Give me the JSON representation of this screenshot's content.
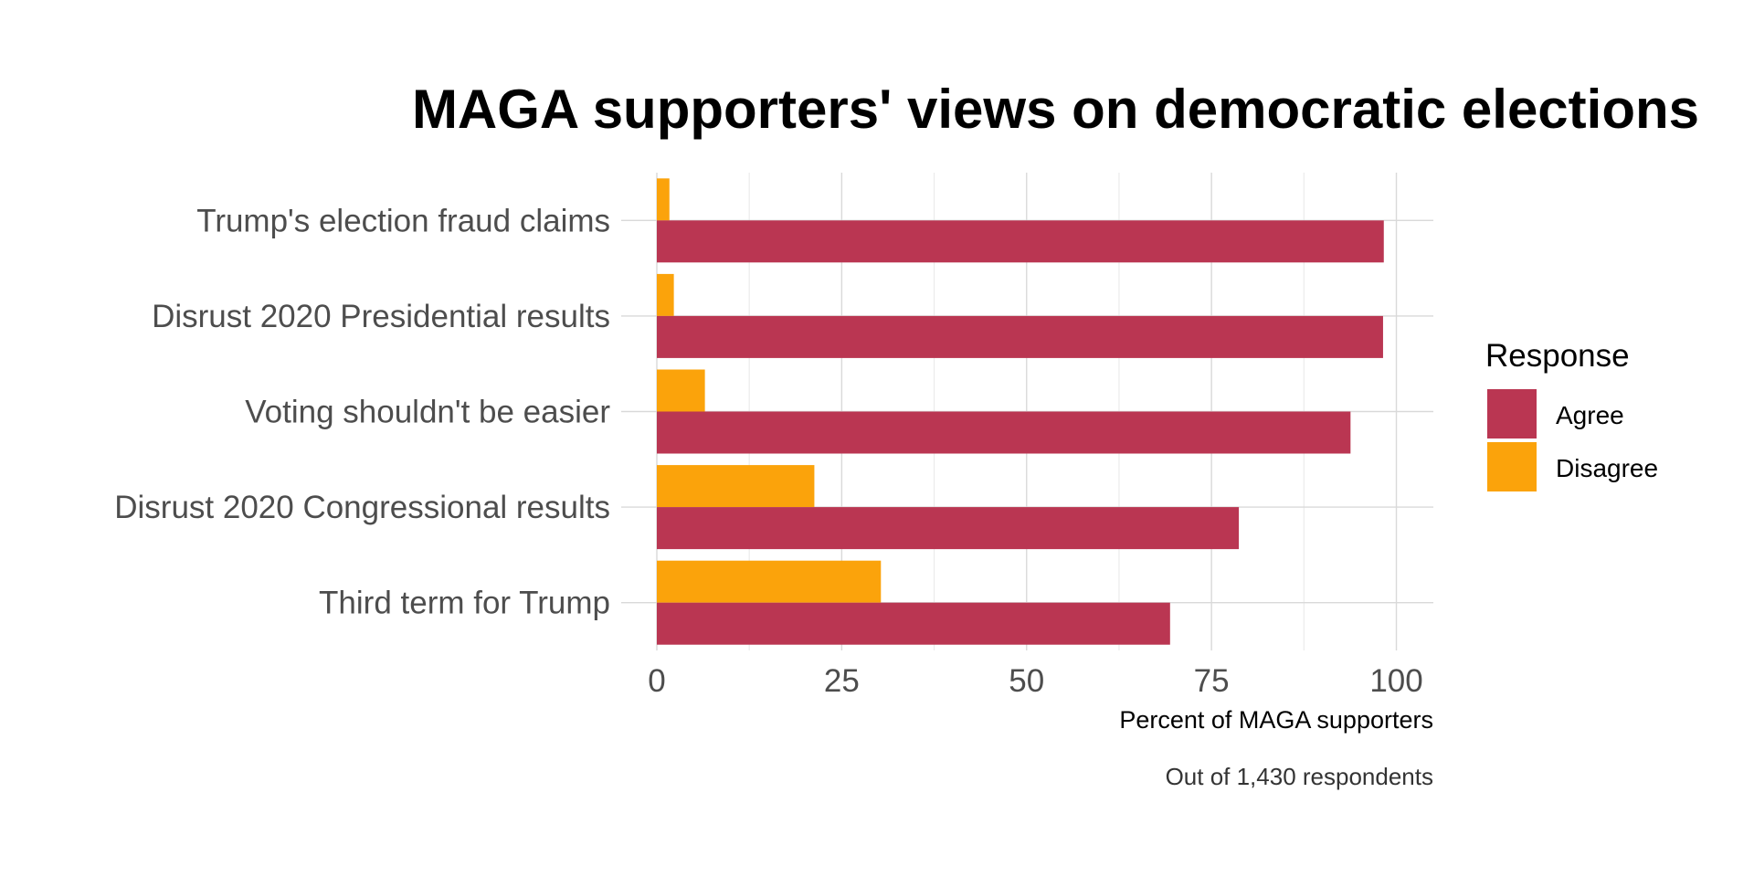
{
  "chart_data": {
    "type": "bar",
    "orientation": "horizontal",
    "title": "MAGA supporters' views on democratic elections",
    "xlabel": "Percent of MAGA supporters",
    "caption": "Out of 1,430 respondents",
    "xlim": [
      0,
      105
    ],
    "x_ticks": [
      0,
      25,
      50,
      75,
      100
    ],
    "grid": true,
    "categories": [
      "Trump's election fraud claims",
      "Disrust 2020 Presidential results",
      "Voting shouldn't be easier",
      "Disrust 2020 Congressional results",
      "Third term for Trump"
    ],
    "legend": {
      "title": "Response",
      "placement": "right"
    },
    "series": [
      {
        "name": "Agree",
        "color": "#BA3652",
        "values": [
          98.3,
          98.2,
          93.8,
          78.7,
          69.4
        ]
      },
      {
        "name": "Disagree",
        "color": "#FBA30B",
        "values": [
          1.7,
          2.3,
          6.5,
          21.3,
          30.3
        ]
      }
    ]
  }
}
